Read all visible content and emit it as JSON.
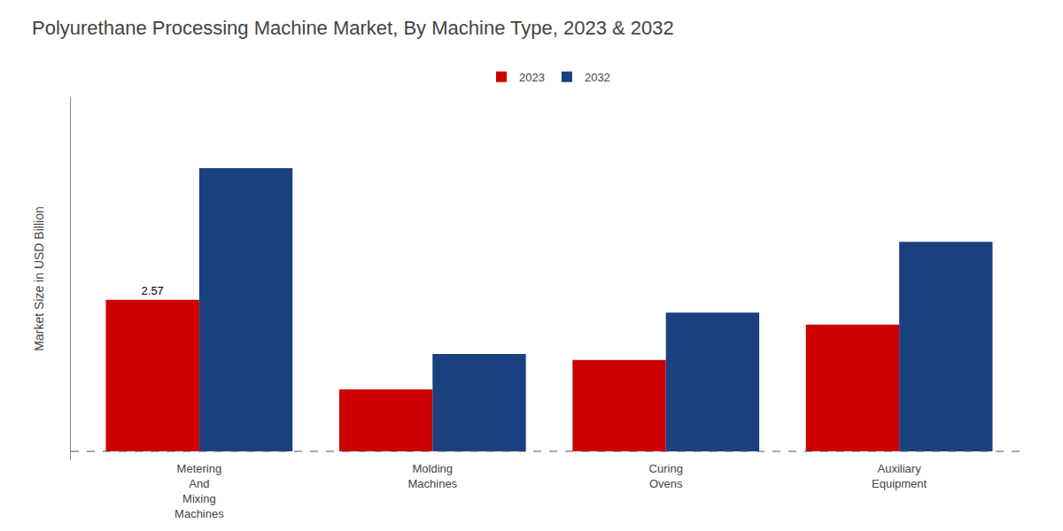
{
  "chart_data": {
    "type": "bar",
    "title": "Polyurethane Processing Machine Market, By Machine Type, 2023 & 2032",
    "ylabel": "Market Size in USD Billion",
    "categories": [
      "Metering\nAnd\nMixing\nMachines",
      "Molding\nMachines",
      "Curing\nOvens",
      "Auxiliary\nEquipment"
    ],
    "series": [
      {
        "name": "2023",
        "color": "#cc0000",
        "values": [
          2.57,
          1.05,
          1.55,
          2.15
        ]
      },
      {
        "name": "2032",
        "color": "#1b4080",
        "values": [
          4.8,
          1.65,
          2.35,
          3.55
        ]
      }
    ],
    "annotations": [
      {
        "text": "2.57",
        "series": "2023",
        "category": "Metering\nAnd\nMixing\nMachines",
        "value": 2.57
      }
    ],
    "reference_line": {
      "value": 0,
      "line_style": "dashed"
    },
    "ylim": [
      -0.15,
      6.0
    ],
    "yticks": [],
    "tick_labels": "x",
    "grid": false,
    "legend": "top"
  }
}
